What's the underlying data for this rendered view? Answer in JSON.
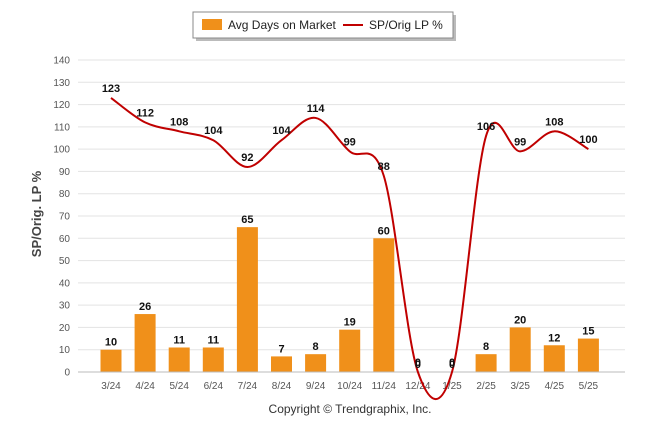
{
  "chart_data": {
    "type": "bar",
    "categories": [
      "3/24",
      "4/24",
      "5/24",
      "6/24",
      "7/24",
      "8/24",
      "9/24",
      "10/24",
      "11/24",
      "12/24",
      "1/25",
      "2/25",
      "3/25",
      "4/25",
      "5/25"
    ],
    "series": [
      {
        "name": "Avg Days on Market",
        "type": "bar",
        "color": "#F0901A",
        "values": [
          10,
          26,
          11,
          11,
          65,
          7,
          8,
          19,
          60,
          0,
          0,
          8,
          20,
          12,
          15
        ]
      },
      {
        "name": "SP/Orig LP %",
        "type": "line",
        "color": "#C00000",
        "values": [
          123,
          112,
          108,
          104,
          92,
          104,
          114,
          99,
          88,
          0,
          0,
          106,
          99,
          108,
          100
        ]
      }
    ],
    "ylabel": "SP/Orig. LP %",
    "xlabel": "",
    "ylim": [
      0,
      140
    ],
    "yticks": [
      0,
      10,
      20,
      30,
      40,
      50,
      60,
      70,
      80,
      90,
      100,
      110,
      120,
      130,
      140
    ],
    "grid": true,
    "legend_position": "top-center"
  },
  "footer": "Copyright © Trendgraphix, Inc."
}
